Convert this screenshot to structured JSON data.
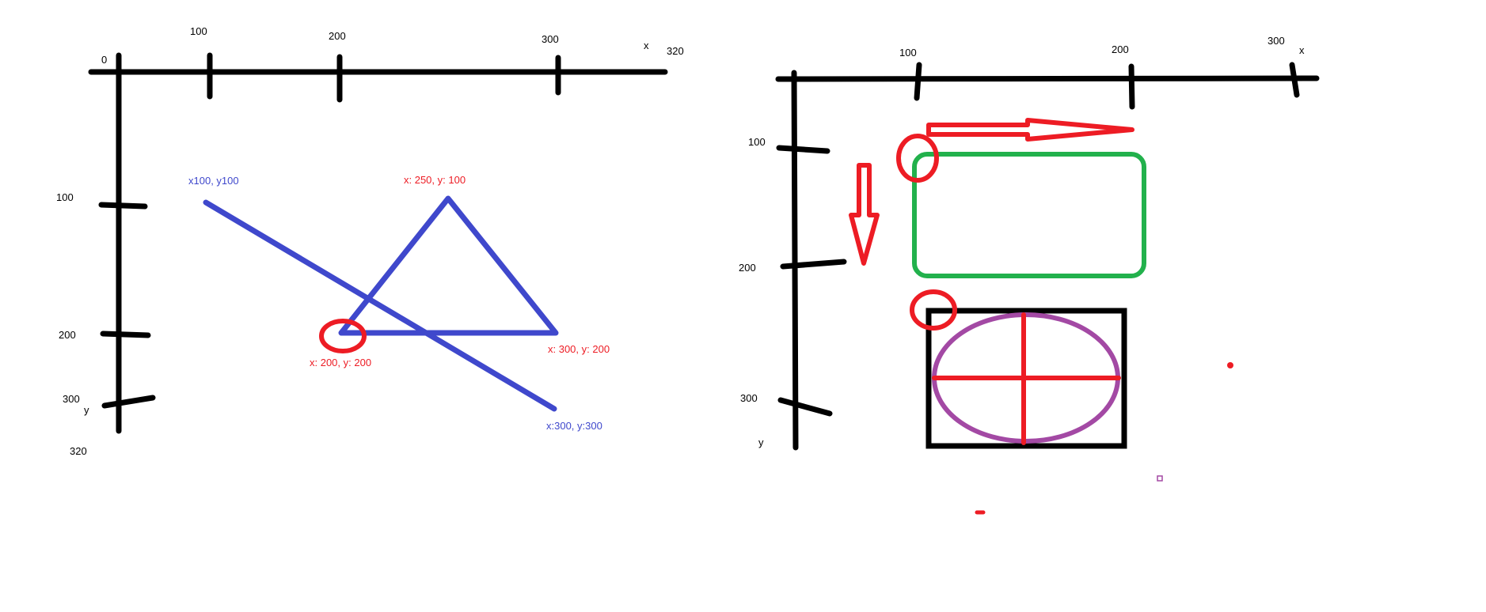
{
  "colors": {
    "axis": "#000000",
    "blue": "#3f48cc",
    "red": "#ed1c24",
    "green": "#22b14c",
    "purple": "#a349a4"
  },
  "left": {
    "x_labels": [
      "0",
      "100",
      "200",
      "300",
      "x",
      "320"
    ],
    "y_labels": [
      "100",
      "200",
      "300",
      "y",
      "320"
    ],
    "point_labels": {
      "line_start": "x100, y100",
      "line_end": "x:300, y:300",
      "triangle_top": "x: 250, y: 100",
      "triangle_left": "x: 200, y: 200",
      "triangle_right": "x: 300, y: 200"
    }
  },
  "right": {
    "x_labels": [
      "100",
      "200",
      "300",
      "x"
    ],
    "y_labels": [
      "100",
      "200",
      "300",
      "y"
    ]
  }
}
